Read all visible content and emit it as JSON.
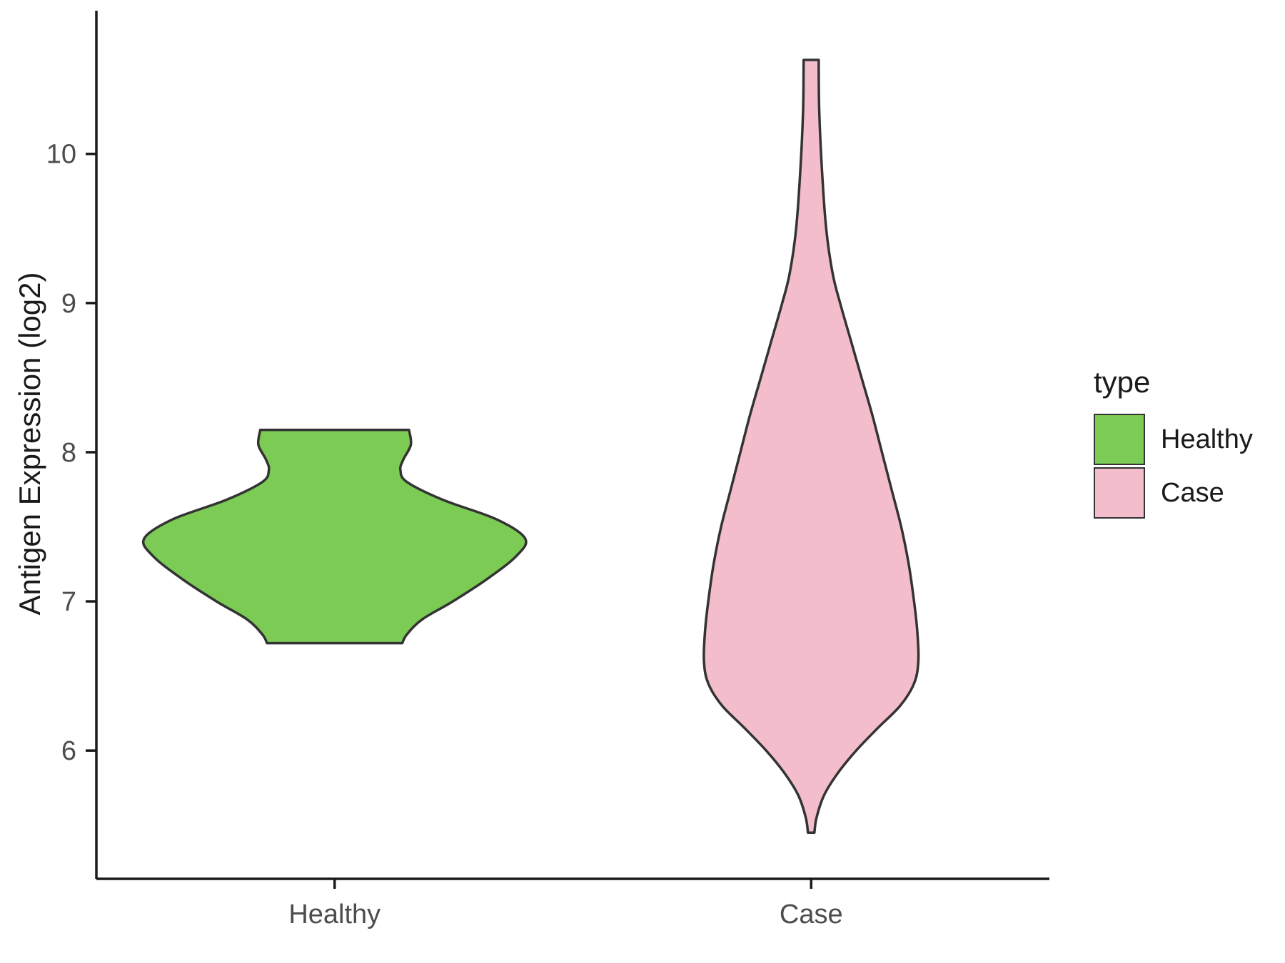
{
  "chart_data": {
    "type": "violin",
    "title": "",
    "xlabel": "",
    "ylabel": "Antigen Expression (log2)",
    "categories": [
      "Healthy",
      "Case"
    ],
    "y_ticks": [
      6,
      7,
      8,
      9,
      10
    ],
    "ylim": [
      5.14,
      10.96
    ],
    "grid": "off",
    "axis_color": "#1a1a1a",
    "tick_label_color": "#4d4d4d",
    "series": [
      {
        "name": "Healthy",
        "fill": "#7BCB55",
        "stroke": "#333333",
        "width_fraction": 0.8,
        "y_min": 6.72,
        "y_max": 8.15,
        "profile": [
          [
            8.15,
            0.39
          ],
          [
            8.05,
            0.4
          ],
          [
            7.95,
            0.36
          ],
          [
            7.88,
            0.345
          ],
          [
            7.8,
            0.38
          ],
          [
            7.68,
            0.57
          ],
          [
            7.55,
            0.85
          ],
          [
            7.42,
            1.0
          ],
          [
            7.3,
            0.95
          ],
          [
            7.15,
            0.8
          ],
          [
            7.0,
            0.62
          ],
          [
            6.88,
            0.46
          ],
          [
            6.78,
            0.38
          ],
          [
            6.72,
            0.355
          ]
        ]
      },
      {
        "name": "Case",
        "fill": "#F4BDCB",
        "stroke": "#333333",
        "width_fraction": 0.45,
        "y_min": 5.45,
        "y_max": 10.63,
        "profile": [
          [
            10.63,
            0.07
          ],
          [
            10.3,
            0.075
          ],
          [
            9.9,
            0.1
          ],
          [
            9.5,
            0.14
          ],
          [
            9.2,
            0.2
          ],
          [
            9.0,
            0.27
          ],
          [
            8.75,
            0.37
          ],
          [
            8.5,
            0.47
          ],
          [
            8.25,
            0.57
          ],
          [
            8.0,
            0.66
          ],
          [
            7.75,
            0.75
          ],
          [
            7.5,
            0.84
          ],
          [
            7.25,
            0.91
          ],
          [
            7.0,
            0.96
          ],
          [
            6.8,
            0.99
          ],
          [
            6.6,
            1.0
          ],
          [
            6.45,
            0.96
          ],
          [
            6.3,
            0.83
          ],
          [
            6.15,
            0.62
          ],
          [
            6.0,
            0.42
          ],
          [
            5.85,
            0.25
          ],
          [
            5.7,
            0.12
          ],
          [
            5.55,
            0.05
          ],
          [
            5.45,
            0.03
          ]
        ]
      }
    ],
    "legend": {
      "title": "type",
      "position": "right",
      "entries": [
        {
          "label": "Healthy",
          "color": "#7BCB55"
        },
        {
          "label": "Case",
          "color": "#F4BDCB"
        }
      ]
    }
  }
}
